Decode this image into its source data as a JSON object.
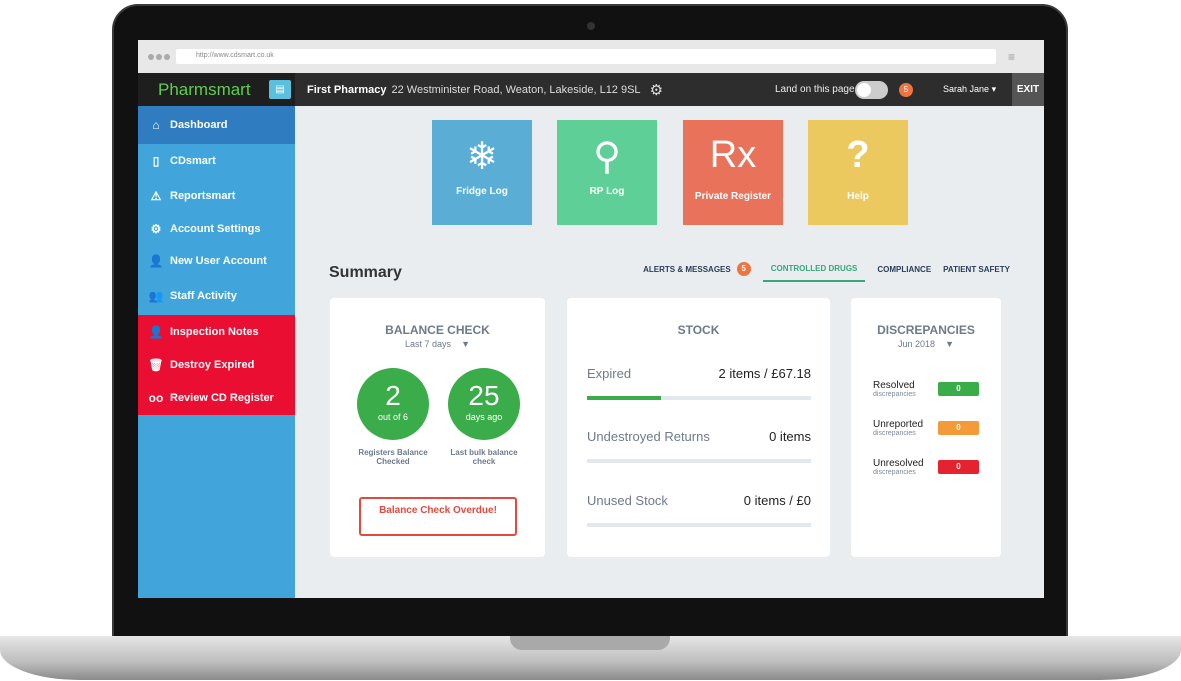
{
  "browser": {
    "url": "http://www.cdsmart.co.uk"
  },
  "app": {
    "logo": "Pharmsmart"
  },
  "header": {
    "pharmacy_name": "First Pharmacy",
    "address": "22 Westminister Road, Weaton, Lakeside, L12 9SL",
    "land_label": "Land on this page",
    "land_toggle_on": false,
    "notification_count": "5",
    "user": "Sarah Jane",
    "exit": "EXIT"
  },
  "sidebar": {
    "items": [
      {
        "label": "Dashboard",
        "icon": "home-icon",
        "active": true
      },
      {
        "label": "CDsmart",
        "icon": "bottles-icon"
      },
      {
        "label": "Reportsmart",
        "icon": "warning-icon"
      },
      {
        "label": "Account Settings",
        "icon": "gear-icon"
      },
      {
        "label": "New User Account",
        "icon": "add-user-icon"
      },
      {
        "label": "Staff Activity",
        "icon": "group-icon"
      },
      {
        "label": "Inspection Notes",
        "icon": "inspector-icon"
      },
      {
        "label": "Destroy Expired",
        "icon": "trash-icon"
      },
      {
        "label": "Review CD Register",
        "icon": "glasses-icon"
      }
    ]
  },
  "tiles": [
    {
      "label": "Fridge Log",
      "icon": "snowflake-icon",
      "color": "#5aaed6"
    },
    {
      "label": "RP Log",
      "icon": "user-icon",
      "color": "#5ecf97"
    },
    {
      "label": "Private Register",
      "glyph": "Rx",
      "color": "#e8725a"
    },
    {
      "label": "Help",
      "glyph": "?",
      "color": "#ecc95f"
    }
  ],
  "summary": {
    "title": "Summary",
    "tabs": [
      {
        "label": "ALERTS & MESSAGES",
        "badge": "5"
      },
      {
        "label": "CONTROLLED DRUGS",
        "active": true
      },
      {
        "label": "COMPLIANCE"
      },
      {
        "label": "PATIENT SAFETY"
      }
    ]
  },
  "balance": {
    "title": "BALANCE CHECK",
    "period": "Last 7 days",
    "checked": "2",
    "checked_sub": "out of 6",
    "checked_label": "Registers Balance Checked",
    "days": "25",
    "days_sub": "days ago",
    "days_label": "Last bulk balance check",
    "overdue": "Balance Check Overdue!"
  },
  "stock": {
    "title": "STOCK",
    "rows": [
      {
        "label": "Expired",
        "value": "2 items / £67.18",
        "progress_pct": 33
      },
      {
        "label": "Undestroyed Returns",
        "value": "0 items",
        "progress_pct": 0
      },
      {
        "label": "Unused Stock",
        "value": "0 items / £0",
        "progress_pct": 0
      }
    ]
  },
  "discrepancies": {
    "title": "DISCREPANCIES",
    "period": "Jun 2018",
    "rows": [
      {
        "label": "Resolved",
        "sub": "discrepancies",
        "value": "0",
        "color": "#3aac4a"
      },
      {
        "label": "Unreported",
        "sub": "discrepancies",
        "value": "0",
        "color": "#f29b38"
      },
      {
        "label": "Unresolved",
        "sub": "discrepancies",
        "value": "0",
        "color": "#e52230"
      }
    ]
  }
}
